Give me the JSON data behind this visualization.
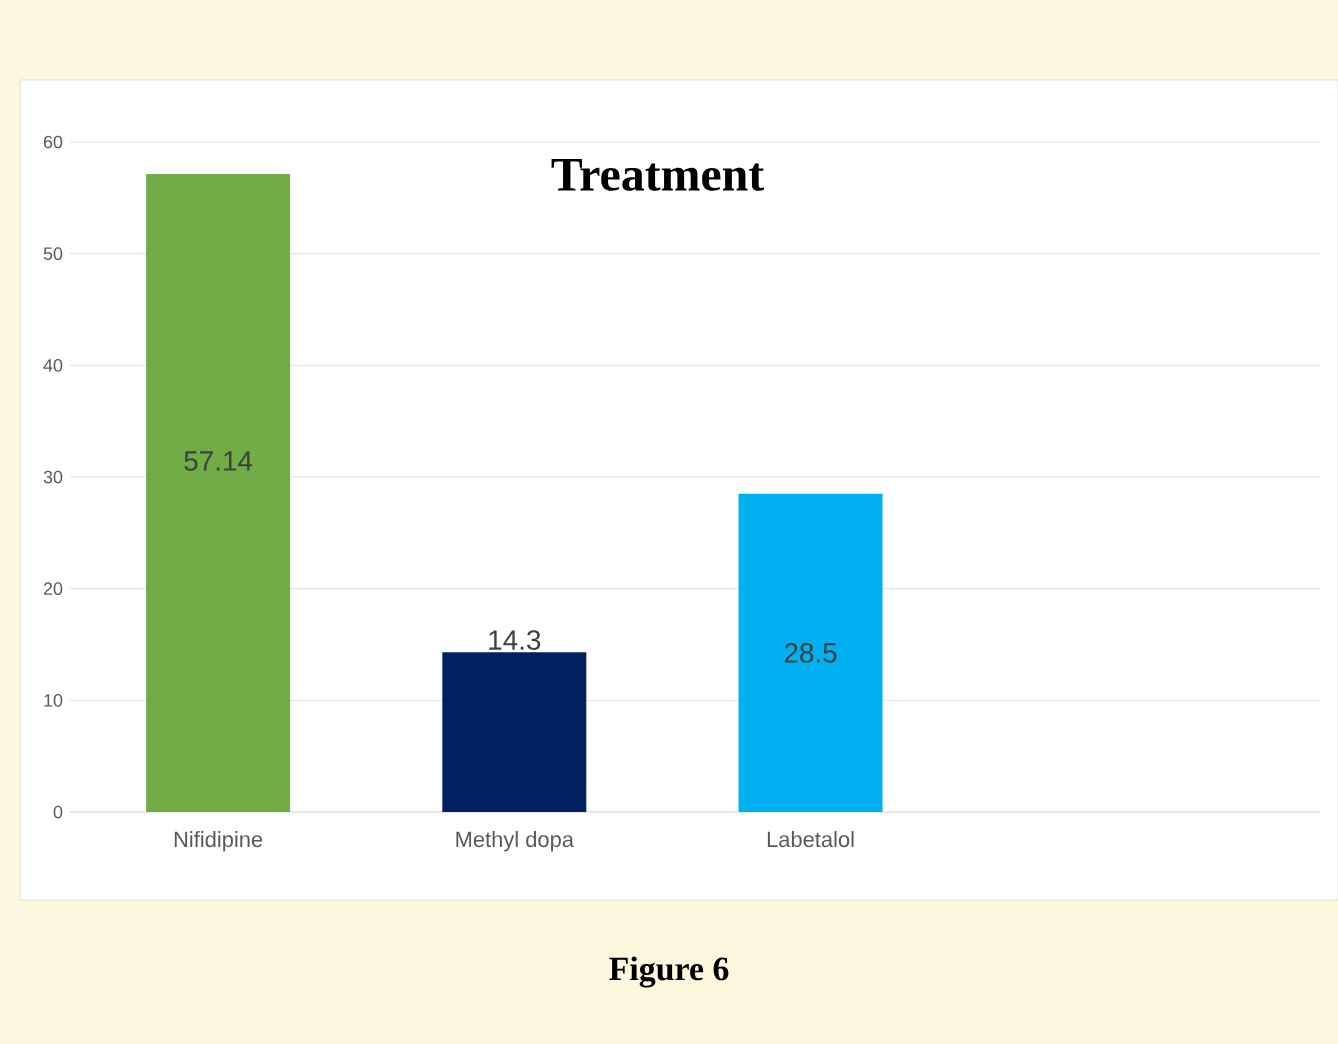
{
  "chart_data": {
    "type": "bar",
    "title": "Treatment",
    "categories": [
      "Nifidipine",
      "Methyl dopa",
      "Labetalol"
    ],
    "colors": [
      "#70ad47",
      "#002060",
      "#00b0f0"
    ],
    "values": [
      57.14,
      14.3,
      28.5
    ],
    "ylim": [
      0,
      60
    ],
    "yticks": [
      0,
      10,
      20,
      30,
      40,
      50,
      60
    ],
    "grid": "y",
    "data_labels": true,
    "annotations": [
      "Figure 6"
    ]
  }
}
